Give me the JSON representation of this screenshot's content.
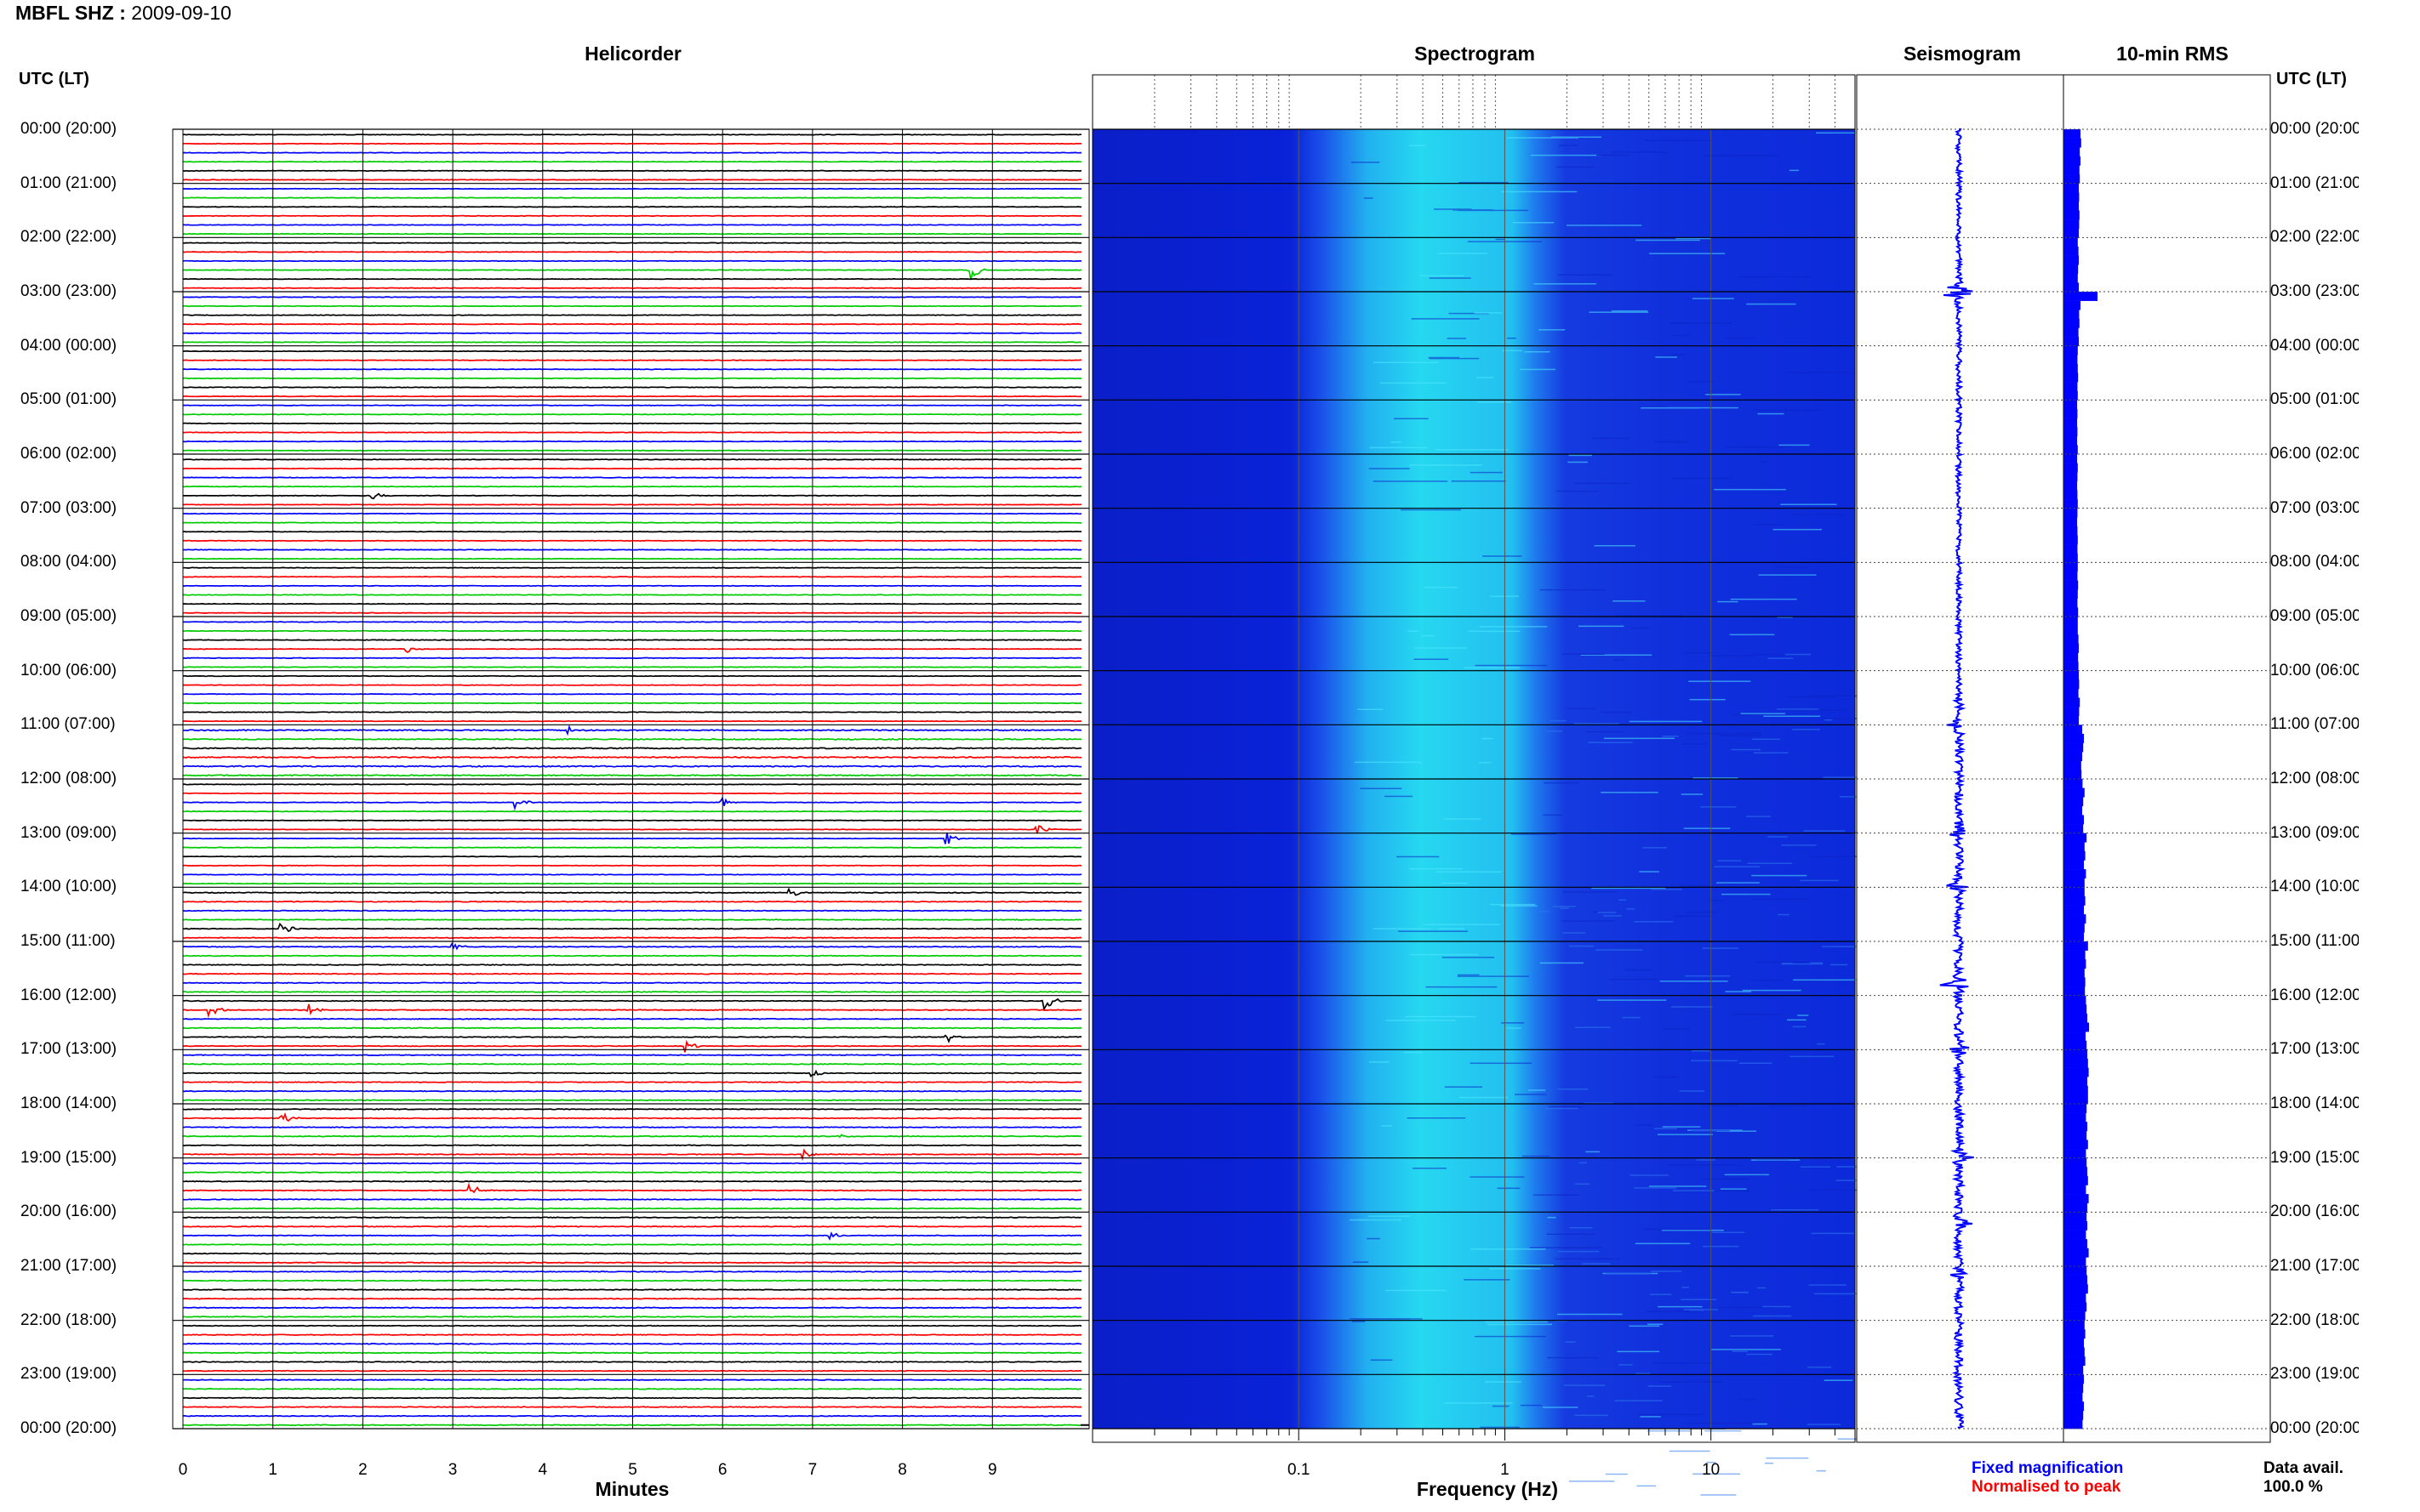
{
  "header": {
    "station": "MBFL SHZ :",
    "date": "2009-09-10"
  },
  "panels": {
    "helicorder": "Helicorder",
    "spectrogram": "Spectrogram",
    "seismogram": "Seismogram",
    "rms": "10-min RMS"
  },
  "time_axis": {
    "left_header": "UTC (LT)",
    "right_header": "UTC (LT)",
    "labels": [
      "00:00 (20:00)",
      "01:00 (21:00)",
      "02:00 (22:00)",
      "03:00 (23:00)",
      "04:00 (00:00)",
      "05:00 (01:00)",
      "06:00 (02:00)",
      "07:00 (03:00)",
      "08:00 (04:00)",
      "09:00 (05:00)",
      "10:00 (06:00)",
      "11:00 (07:00)",
      "12:00 (08:00)",
      "13:00 (09:00)",
      "14:00 (10:00)",
      "15:00 (11:00)",
      "16:00 (12:00)",
      "17:00 (13:00)",
      "18:00 (14:00)",
      "19:00 (15:00)",
      "20:00 (16:00)",
      "21:00 (17:00)",
      "22:00 (18:00)",
      "23:00 (19:00)",
      "00:00 (20:00)"
    ]
  },
  "helicorder_axis": {
    "ticks": [
      "0",
      "1",
      "2",
      "3",
      "4",
      "5",
      "6",
      "7",
      "8",
      "9"
    ],
    "label": "Minutes"
  },
  "spectrogram_axis": {
    "ticks": [
      "0.1",
      "1",
      "10"
    ],
    "label": "Frequency (Hz)"
  },
  "legend": {
    "fixed": "Fixed magnification",
    "normalised": "Normalised to peak"
  },
  "availability": {
    "label": "Data avail.",
    "value": "100.0 %"
  },
  "colors": {
    "trace_cycle": [
      "#000000",
      "#ff0000",
      "#0000ff",
      "#00cc00"
    ],
    "spectrogram_base": "#0a22d8",
    "spectrogram_peak": "#26d8f0",
    "seismogram": "#0000ff",
    "rms": "#0000ff",
    "legend_fixed": "#0000ff",
    "legend_normalised": "#ff0000"
  },
  "chart_data": [
    {
      "type": "line",
      "name": "helicorder",
      "xlim": [
        0,
        10
      ],
      "xlabel": "Minutes",
      "rows_per_hour": 6,
      "events": [
        {
          "row": 15,
          "minute": 8.75,
          "amp": 3.5
        },
        {
          "row": 40,
          "minute": 2.1,
          "amp": 1.2
        },
        {
          "row": 57,
          "minute": 2.5,
          "amp": 0.8
        },
        {
          "row": 66,
          "minute": 4.3,
          "amp": 1.0
        },
        {
          "row": 74,
          "minute": 3.7,
          "amp": 1.5
        },
        {
          "row": 74,
          "minute": 6.0,
          "amp": 1.0
        },
        {
          "row": 77,
          "minute": 9.5,
          "amp": 1.5
        },
        {
          "row": 78,
          "minute": 8.5,
          "amp": 1.5
        },
        {
          "row": 84,
          "minute": 6.75,
          "amp": 1.5
        },
        {
          "row": 88,
          "minute": 1.1,
          "amp": 2.5
        },
        {
          "row": 90,
          "minute": 3.0,
          "amp": 1.0
        },
        {
          "row": 96,
          "minute": 9.6,
          "amp": 2.0
        },
        {
          "row": 97,
          "minute": 0.3,
          "amp": 2.0
        },
        {
          "row": 97,
          "minute": 1.4,
          "amp": 1.5
        },
        {
          "row": 100,
          "minute": 8.5,
          "amp": 1.5
        },
        {
          "row": 101,
          "minute": 5.6,
          "amp": 1.5
        },
        {
          "row": 104,
          "minute": 7.0,
          "amp": 1.0
        },
        {
          "row": 109,
          "minute": 1.1,
          "amp": 1.5
        },
        {
          "row": 111,
          "minute": 7.3,
          "amp": 1.0
        },
        {
          "row": 113,
          "minute": 6.9,
          "amp": 1.2
        },
        {
          "row": 117,
          "minute": 3.2,
          "amp": 1.8
        },
        {
          "row": 122,
          "minute": 7.2,
          "amp": 1.0
        }
      ]
    },
    {
      "type": "heatmap",
      "name": "spectrogram",
      "xscale": "log",
      "xlim": [
        0.01,
        50
      ],
      "xlabel": "Frequency (Hz)",
      "microseism_band_hz": [
        0.3,
        3
      ]
    },
    {
      "type": "line",
      "name": "seismogram",
      "bursts": [
        {
          "hour": 3.0,
          "amp": 1.0
        },
        {
          "hour": 11.0,
          "amp": 0.25
        },
        {
          "hour": 13.0,
          "amp": 0.2
        },
        {
          "hour": 14.0,
          "amp": 0.3
        },
        {
          "hour": 15.8,
          "amp": 0.4
        },
        {
          "hour": 17.0,
          "amp": 0.3
        },
        {
          "hour": 19.0,
          "amp": 0.3
        },
        {
          "hour": 20.2,
          "amp": 0.3
        },
        {
          "hour": 21.2,
          "amp": 0.2
        }
      ]
    },
    {
      "type": "bar",
      "name": "10-min RMS",
      "values": [
        0.5,
        0.52,
        0.48,
        0.5,
        0.47,
        0.48,
        0.45,
        0.46,
        0.45,
        0.47,
        0.46,
        0.45,
        0.42,
        0.44,
        0.45,
        0.43,
        0.42,
        0.45,
        1.0,
        0.5,
        0.46,
        0.47,
        0.44,
        0.45,
        0.42,
        0.41,
        0.42,
        0.43,
        0.41,
        0.42,
        0.4,
        0.41,
        0.4,
        0.41,
        0.4,
        0.42,
        0.4,
        0.42,
        0.41,
        0.4,
        0.41,
        0.42,
        0.41,
        0.4,
        0.41,
        0.42,
        0.41,
        0.42,
        0.42,
        0.41,
        0.43,
        0.42,
        0.41,
        0.43,
        0.42,
        0.42,
        0.44,
        0.45,
        0.43,
        0.44,
        0.45,
        0.46,
        0.44,
        0.48,
        0.46,
        0.45,
        0.55,
        0.6,
        0.58,
        0.55,
        0.52,
        0.53,
        0.56,
        0.62,
        0.58,
        0.55,
        0.6,
        0.58,
        0.68,
        0.62,
        0.64,
        0.6,
        0.66,
        0.62,
        0.62,
        0.64,
        0.6,
        0.66,
        0.62,
        0.6,
        0.72,
        0.64,
        0.66,
        0.62,
        0.64,
        0.63,
        0.66,
        0.68,
        0.7,
        0.75,
        0.65,
        0.68,
        0.7,
        0.72,
        0.74,
        0.7,
        0.72,
        0.72,
        0.68,
        0.66,
        0.7,
        0.68,
        0.72,
        0.66,
        0.68,
        0.7,
        0.72,
        0.66,
        0.74,
        0.7,
        0.68,
        0.7,
        0.66,
        0.7,
        0.74,
        0.66,
        0.68,
        0.7,
        0.72,
        0.66,
        0.68,
        0.64,
        0.62,
        0.64,
        0.6,
        0.62,
        0.64,
        0.58,
        0.6,
        0.58,
        0.56,
        0.6,
        0.58,
        0.56
      ]
    }
  ]
}
